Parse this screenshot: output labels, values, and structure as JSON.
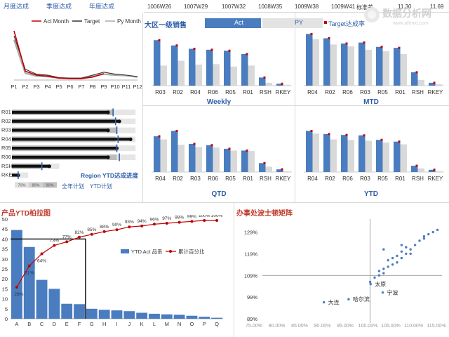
{
  "top_tabs": [
    "月度达成",
    "季度达成",
    "年度达成"
  ],
  "week_cells": [
    "1006W26",
    "1007W29",
    "1007W32",
    "1008W35",
    "1009W38",
    "1009W41"
  ],
  "std": {
    "label": "标准差",
    "v1": "11.30",
    "v2": "11.69"
  },
  "logo": {
    "main": "数据分析网",
    "sub": "www.afenxi.com"
  },
  "colors": {
    "act": "#4a7cc0",
    "py": "#d9d9d9",
    "target": "#c00000",
    "dark": "#333333"
  },
  "chart_data": [
    {
      "id": "monthly-line",
      "type": "line",
      "categories": [
        "P1",
        "P2",
        "P3",
        "P4",
        "P5",
        "P6",
        "P7",
        "P8",
        "P9",
        "P10",
        "P11",
        "P12"
      ],
      "series": [
        {
          "name": "Act Month",
          "values": [
            100,
            18,
            10,
            8,
            4,
            3,
            3,
            6,
            13,
            null,
            null,
            null
          ]
        },
        {
          "name": "Target",
          "values": [
            90,
            22,
            12,
            10,
            5,
            4,
            4,
            10,
            16,
            12,
            10,
            7
          ]
        },
        {
          "name": "Py Month",
          "values": [
            82,
            14,
            8,
            7,
            4,
            3,
            3,
            8,
            12,
            10,
            9,
            6
          ]
        }
      ]
    },
    {
      "id": "region-bullet",
      "type": "bar",
      "title": "Region YTD达成进度",
      "categories": [
        "R01",
        "R02",
        "R03",
        "R04",
        "R05",
        "R06",
        "RSH",
        "RKEY"
      ],
      "ticks": [
        "70%",
        "80%",
        "90%"
      ],
      "legend": [
        "全年计划",
        "YTD计划"
      ],
      "series": [
        {
          "name": "actual",
          "values": [
            0.77,
            0.86,
            0.77,
            0.95,
            0.84,
            0.77,
            0.3,
            0.05
          ]
        },
        {
          "name": "ytd_plan",
          "values": [
            0.81,
            0.83,
            0.84,
            0.83,
            0.84,
            0.84,
            0.23,
            0.0
          ]
        },
        {
          "name": "full_plan",
          "values": [
            0.99,
            0.99,
            0.99,
            0.99,
            0.99,
            0.99,
            0.38,
            0.13
          ]
        },
        {
          "name": "marker",
          "values": [
            0.81,
            0.83,
            0.84,
            0.85,
            0.84,
            0.86,
            0.24,
            0.05
          ]
        }
      ]
    },
    {
      "id": "weekly",
      "type": "bar",
      "title": "Weekly",
      "header": {
        "left": "大区一级销售",
        "act": "Act",
        "py": "PY",
        "target": "Target达成率"
      },
      "categories": [
        "R03",
        "R02",
        "R04",
        "R06",
        "R05",
        "R01",
        "RSH",
        "RKEY"
      ],
      "series": [
        {
          "name": "Act",
          "values": [
            95,
            84,
            77,
            75,
            73,
            66,
            17,
            4
          ]
        },
        {
          "name": "PY",
          "values": [
            42,
            52,
            44,
            45,
            40,
            42,
            6,
            2
          ]
        }
      ]
    },
    {
      "id": "mtd",
      "type": "bar",
      "title": "MTD",
      "categories": [
        "R04",
        "R02",
        "R06",
        "R03",
        "R05",
        "R01",
        "RSH",
        "RKEY"
      ],
      "series": [
        {
          "name": "Act",
          "values": [
            108,
            99,
            88,
            90,
            81,
            79,
            28,
            6
          ]
        },
        {
          "name": "PY",
          "values": [
            97,
            86,
            82,
            75,
            72,
            66,
            12,
            3
          ]
        }
      ]
    },
    {
      "id": "qtd",
      "type": "bar",
      "title": "QTD",
      "categories": [
        "R04",
        "R02",
        "R03",
        "R06",
        "R05",
        "R01",
        "RSH",
        "RKEY"
      ],
      "series": [
        {
          "name": "Act",
          "values": [
            80,
            92,
            63,
            60,
            52,
            48,
            20,
            6
          ]
        },
        {
          "name": "PY",
          "values": [
            73,
            61,
            56,
            55,
            48,
            47,
            12,
            2
          ]
        }
      ]
    },
    {
      "id": "ytd",
      "type": "bar",
      "title": "YTD",
      "categories": [
        "R04",
        "R02",
        "R06",
        "R03",
        "R05",
        "R01",
        "RSH",
        "RKEY"
      ],
      "series": [
        {
          "name": "Act",
          "values": [
            92,
            85,
            83,
            82,
            72,
            68,
            14,
            5
          ]
        },
        {
          "name": "PY",
          "values": [
            86,
            73,
            72,
            70,
            66,
            62,
            8,
            2
          ]
        }
      ]
    },
    {
      "id": "pareto",
      "type": "bar",
      "title": "产品YTD柏拉图",
      "categories": [
        "A",
        "B",
        "C",
        "D",
        "E",
        "F",
        "G",
        "H",
        "I",
        "J",
        "K",
        "L",
        "M",
        "N",
        "O",
        "P",
        "Q"
      ],
      "ylim": [
        0,
        50
      ],
      "yticks": [
        0,
        5,
        10,
        15,
        20,
        25,
        30,
        35,
        40,
        45,
        50
      ],
      "series": [
        {
          "name": "YTD Act 品系",
          "values": [
            44.5,
            36,
            19.5,
            15,
            7.5,
            7.3,
            5,
            4.5,
            4.2,
            3.8,
            3,
            2.5,
            2.2,
            2,
            1.5,
            1,
            0.5
          ]
        },
        {
          "name": "累计百分比",
          "values": [
            0.28,
            0.51,
            0.64,
            0.73,
            0.77,
            0.82,
            0.85,
            0.88,
            0.9,
            0.93,
            0.94,
            0.96,
            0.97,
            0.98,
            0.99,
            1.0,
            1.0
          ]
        }
      ],
      "pct_labels": [
        "28%",
        "51%",
        "64%",
        "73%",
        "77%",
        "82%",
        "85%",
        "88%",
        "90%",
        "93%",
        "94%",
        "96%",
        "97%",
        "98%",
        "99%",
        "100%",
        "100%"
      ]
    },
    {
      "id": "matrix",
      "type": "scatter",
      "title": "办事处波士顿矩阵",
      "xlim": [
        0.75,
        1.15
      ],
      "ylim": [
        0.89,
        1.35
      ],
      "xticks": [
        "75.00%",
        "80.00%",
        "85.00%",
        "90.00%",
        "95.00%",
        "100.00%",
        "105.00%",
        "110.00%",
        "115.00%"
      ],
      "yticks": [
        "89%",
        "99%",
        "109%",
        "119%",
        "129%"
      ],
      "labeled_points": [
        {
          "label": "大连",
          "x": 0.887,
          "y": 0.966
        },
        {
          "label": "哈尔滨",
          "x": 0.942,
          "y": 0.98
        },
        {
          "label": "太原",
          "x": 0.991,
          "y": 1.05
        },
        {
          "label": "宁波",
          "x": 1.018,
          "y": 1.011
        }
      ],
      "points": [
        [
          0.99,
          1.06
        ],
        [
          1.0,
          1.08
        ],
        [
          1.01,
          1.09
        ],
        [
          1.01,
          1.11
        ],
        [
          1.02,
          1.1
        ],
        [
          1.02,
          1.12
        ],
        [
          1.03,
          1.13
        ],
        [
          1.03,
          1.16
        ],
        [
          1.04,
          1.14
        ],
        [
          1.04,
          1.17
        ],
        [
          1.05,
          1.15
        ],
        [
          1.05,
          1.18
        ],
        [
          1.06,
          1.17
        ],
        [
          1.06,
          1.2
        ],
        [
          1.07,
          1.19
        ],
        [
          1.07,
          1.22
        ],
        [
          1.08,
          1.21
        ],
        [
          1.09,
          1.23
        ],
        [
          1.1,
          1.25
        ],
        [
          1.11,
          1.26
        ],
        [
          1.11,
          1.27
        ],
        [
          1.12,
          1.28
        ],
        [
          1.13,
          1.29
        ],
        [
          1.14,
          1.3
        ],
        [
          1.02,
          1.21
        ],
        [
          1.06,
          1.23
        ],
        [
          1.08,
          1.19
        ]
      ]
    }
  ]
}
